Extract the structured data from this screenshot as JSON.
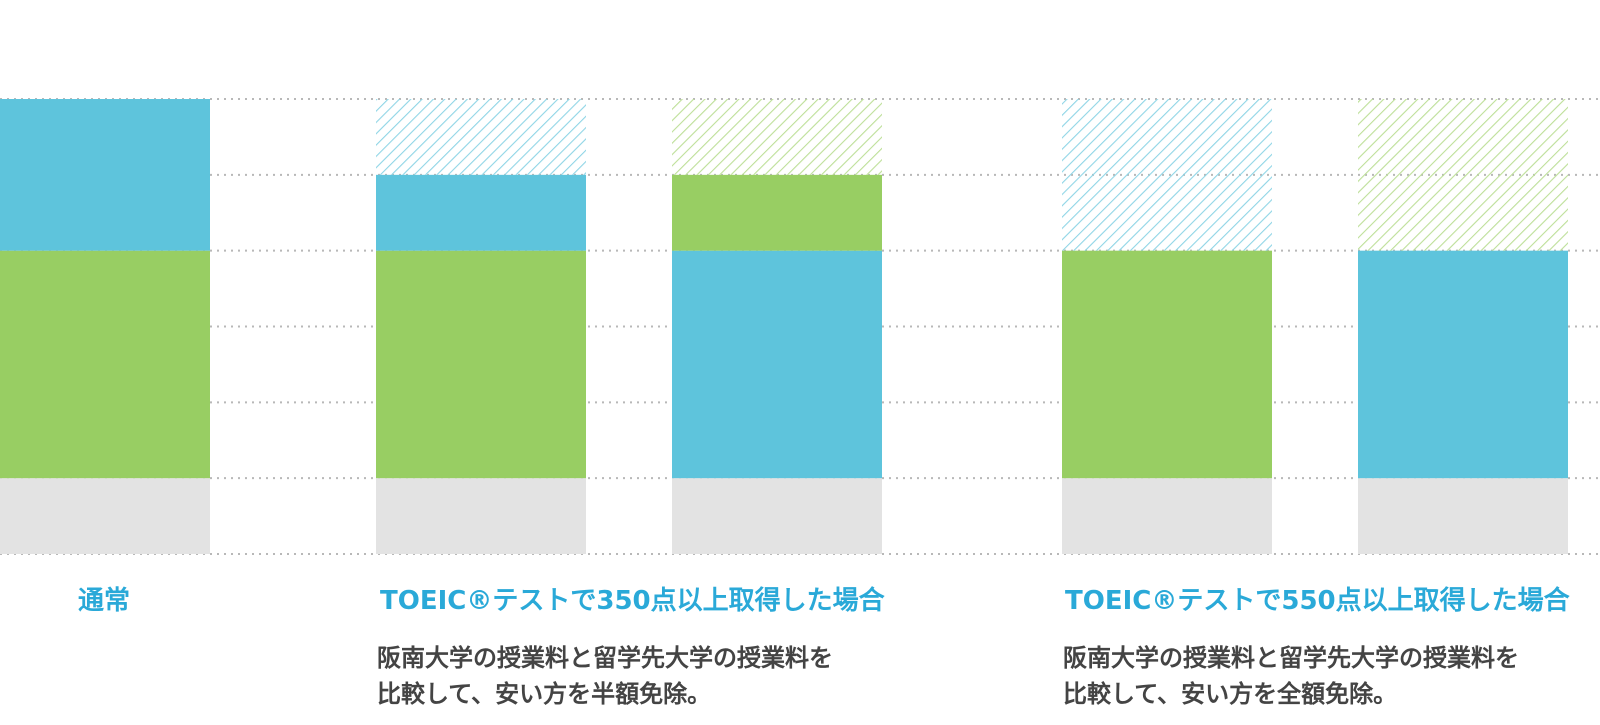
{
  "chart_data": {
    "type": "bar",
    "stacked": true,
    "ylim": [
      0,
      6
    ],
    "grid": true,
    "colors": {
      "blue": "#5ec4dc",
      "green": "#98ce63",
      "gray": "#e3e3e3",
      "grid": "#b8b8b8",
      "hatch_blue": "#8fd5e6",
      "hatch_green": "#bddf98"
    },
    "groups": [
      {
        "title": "通常",
        "description": [],
        "bars": [
          {
            "segments": [
              {
                "color": "gray",
                "value": 1
              },
              {
                "color": "green",
                "value": 3
              },
              {
                "color": "blue",
                "value": 2
              }
            ]
          }
        ]
      },
      {
        "title": "TOEIC®テストで350点以上取得した場合",
        "description": [
          "阪南大学の授業料と留学先大学の授業料を",
          "比較して、安い方を半額免除。"
        ],
        "bars": [
          {
            "segments": [
              {
                "color": "gray",
                "value": 1
              },
              {
                "color": "green",
                "value": 3
              },
              {
                "color": "blue",
                "value": 1
              },
              {
                "color": "hatch_blue",
                "value": 1
              }
            ]
          },
          {
            "segments": [
              {
                "color": "gray",
                "value": 1
              },
              {
                "color": "blue",
                "value": 3
              },
              {
                "color": "green",
                "value": 1
              },
              {
                "color": "hatch_green",
                "value": 1
              }
            ]
          }
        ]
      },
      {
        "title": "TOEIC®テストで550点以上取得した場合",
        "description": [
          "阪南大学の授業料と留学先大学の授業料を",
          "比較して、安い方を全額免除。"
        ],
        "bars": [
          {
            "segments": [
              {
                "color": "gray",
                "value": 1
              },
              {
                "color": "green",
                "value": 3
              },
              {
                "color": "hatch_blue",
                "value": 2
              }
            ]
          },
          {
            "segments": [
              {
                "color": "gray",
                "value": 1
              },
              {
                "color": "blue",
                "value": 3
              },
              {
                "color": "hatch_green",
                "value": 2
              }
            ]
          }
        ]
      }
    ]
  }
}
